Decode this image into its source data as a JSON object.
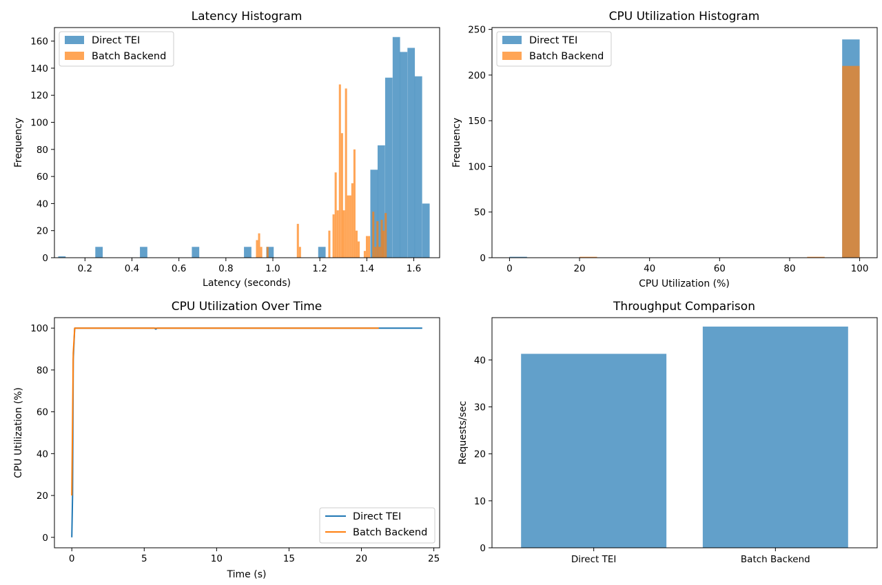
{
  "colors": {
    "direct": "#1f77b4",
    "batch": "#ff7f0e"
  },
  "chart_data": [
    {
      "id": "latency",
      "type": "bar",
      "title": "Latency Histogram",
      "xlabel": "Latency (seconds)",
      "ylabel": "Frequency",
      "xlim": [
        0.07,
        1.71
      ],
      "ylim": [
        0,
        170
      ],
      "xticks": [
        0.2,
        0.4,
        0.6,
        0.8,
        1.0,
        1.2,
        1.4,
        1.6
      ],
      "xtick_labels": [
        "0.2",
        "0.4",
        "0.6",
        "0.8",
        "1.0",
        "1.2",
        "1.4",
        "1.6"
      ],
      "yticks": [
        0,
        20,
        40,
        60,
        80,
        100,
        120,
        140,
        160
      ],
      "legend": "upper-left",
      "series": [
        {
          "name": "Direct TEI",
          "opacity": 0.7,
          "bin_width": 0.0316,
          "bins": [
            [
              0.086,
              1
            ],
            [
              0.244,
              8
            ],
            [
              0.434,
              8
            ],
            [
              0.655,
              8
            ],
            [
              0.877,
              8
            ],
            [
              0.972,
              8
            ],
            [
              1.193,
              8
            ],
            [
              1.415,
              65
            ],
            [
              1.446,
              83
            ],
            [
              1.478,
              133
            ],
            [
              1.51,
              163
            ],
            [
              1.541,
              152
            ],
            [
              1.573,
              155
            ],
            [
              1.604,
              134
            ],
            [
              1.636,
              40
            ]
          ]
        },
        {
          "name": "Batch Backend",
          "opacity": 0.7,
          "bin_width": 0.0089,
          "bins": [
            [
              0.928,
              13
            ],
            [
              0.937,
              18
            ],
            [
              0.946,
              8
            ],
            [
              0.973,
              8
            ],
            [
              1.102,
              25
            ],
            [
              1.111,
              8
            ],
            [
              1.236,
              20
            ],
            [
              1.254,
              32
            ],
            [
              1.263,
              63
            ],
            [
              1.272,
              35
            ],
            [
              1.281,
              128
            ],
            [
              1.29,
              92
            ],
            [
              1.298,
              35
            ],
            [
              1.307,
              125
            ],
            [
              1.316,
              46
            ],
            [
              1.325,
              46
            ],
            [
              1.334,
              55
            ],
            [
              1.343,
              80
            ],
            [
              1.352,
              20
            ],
            [
              1.361,
              12
            ],
            [
              1.387,
              5
            ],
            [
              1.396,
              16
            ],
            [
              1.405,
              16
            ],
            [
              1.423,
              34
            ],
            [
              1.432,
              8
            ],
            [
              1.441,
              27
            ],
            [
              1.45,
              8
            ],
            [
              1.459,
              28
            ],
            [
              1.467,
              20
            ],
            [
              1.476,
              33
            ]
          ]
        }
      ]
    },
    {
      "id": "cpu-hist",
      "type": "bar",
      "title": "CPU Utilization Histogram",
      "xlabel": "CPU Utilization (%)",
      "ylabel": "Frequency",
      "xlim": [
        -5,
        105
      ],
      "ylim": [
        0,
        252
      ],
      "xticks": [
        0,
        20,
        40,
        60,
        80,
        100
      ],
      "xtick_labels": [
        "0",
        "20",
        "40",
        "60",
        "80",
        "100"
      ],
      "yticks": [
        0,
        50,
        100,
        150,
        200,
        250
      ],
      "legend": "upper-left",
      "series": [
        {
          "name": "Direct TEI",
          "opacity": 0.7,
          "bin_width": 5,
          "bins": [
            [
              0,
              1
            ],
            [
              95,
              239
            ]
          ]
        },
        {
          "name": "Batch Backend",
          "opacity": 0.7,
          "bin_width": 5,
          "bins": [
            [
              20,
              1
            ],
            [
              85,
              1
            ],
            [
              95,
              210
            ]
          ]
        }
      ]
    },
    {
      "id": "cpu-time",
      "type": "line",
      "title": "CPU Utilization Over Time",
      "xlabel": "Time (s)",
      "ylabel": "CPU Utilization (%)",
      "xlim": [
        -1.2,
        25.4
      ],
      "ylim": [
        -5,
        105
      ],
      "xticks": [
        0,
        5,
        10,
        15,
        20,
        25
      ],
      "xtick_labels": [
        "0",
        "5",
        "10",
        "15",
        "20",
        "25"
      ],
      "yticks": [
        0,
        20,
        40,
        60,
        80,
        100
      ],
      "legend": "lower-right",
      "series": [
        {
          "name": "Direct TEI",
          "x": [
            0,
            0.05,
            0.1,
            0.2,
            5.7,
            5.8,
            5.9,
            24.2
          ],
          "y": [
            0,
            20,
            85,
            100,
            100,
            99.5,
            100,
            100
          ]
        },
        {
          "name": "Batch Backend",
          "x": [
            0,
            0.1,
            0.2,
            21.2
          ],
          "y": [
            20,
            88,
            100,
            100
          ]
        }
      ]
    },
    {
      "id": "throughput",
      "type": "bar",
      "title": "Throughput Comparison",
      "xlabel": "",
      "ylabel": "Requests/sec",
      "categories": [
        "Direct TEI",
        "Batch Backend"
      ],
      "values": [
        41.3,
        47.1
      ],
      "ylim": [
        0,
        49
      ],
      "yticks": [
        0,
        10,
        20,
        30,
        40
      ],
      "bar_opacity": 0.7
    }
  ]
}
